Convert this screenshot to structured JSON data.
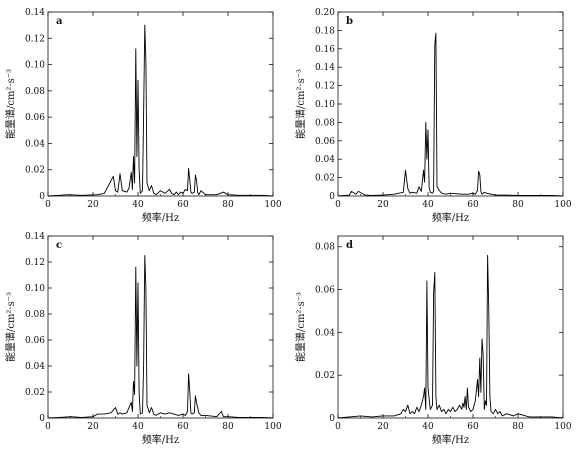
{
  "chart_data": [
    {
      "type": "line",
      "panel_label": "a",
      "xlabel": "频率/Hz",
      "ylabel": "能量谱/cm²·s⁻³",
      "xlim": [
        0,
        100
      ],
      "ylim": [
        0,
        0.14
      ],
      "xticks": [
        "0",
        "20",
        "40",
        "60",
        "80",
        "100"
      ],
      "yticks": [
        "0",
        "0.02",
        "0.04",
        "0.06",
        "0.08",
        "0.10",
        "0.12",
        "0.14"
      ],
      "series": [
        {
          "x": [
            0,
            5,
            9,
            15,
            22,
            25,
            29,
            30,
            31,
            32,
            33,
            35,
            36,
            37,
            37.5,
            38,
            38.5,
            39,
            39.5,
            40,
            40.5,
            41,
            42,
            42.5,
            43,
            43.5,
            44,
            45,
            46,
            47,
            48,
            50,
            52,
            54,
            55,
            56,
            57,
            58,
            59,
            60,
            61,
            62,
            62.5,
            63,
            63.5,
            64,
            65,
            65.5,
            66,
            66.5,
            67,
            68,
            70,
            75,
            78,
            80,
            85,
            90,
            95,
            100
          ],
          "y": [
            0,
            0.0005,
            0.001,
            0.0005,
            0.001,
            0.002,
            0.015,
            0.004,
            0.003,
            0.017,
            0.004,
            0.003,
            0.006,
            0.018,
            0.005,
            0.03,
            0.01,
            0.112,
            0.03,
            0.088,
            0.02,
            0.002,
            0.004,
            0.062,
            0.13,
            0.102,
            0.01,
            0.004,
            0.008,
            0.002,
            0.001,
            0.004,
            0.002,
            0.005,
            0.002,
            0.001,
            0.003,
            0.001,
            0.003,
            0.002,
            0.005,
            0.004,
            0.021,
            0.012,
            0.003,
            0.002,
            0.003,
            0.016,
            0.012,
            0.003,
            0.001,
            0.004,
            0.001,
            0.001,
            0.003,
            0.001,
            0.0005,
            0.0005,
            0.0005,
            0
          ]
        }
      ]
    },
    {
      "type": "line",
      "panel_label": "b",
      "xlabel": "频率/Hz",
      "ylabel": "能量谱/cm²·s⁻³",
      "xlim": [
        0,
        100
      ],
      "ylim": [
        0,
        0.2
      ],
      "xticks": [
        "0",
        "20",
        "40",
        "60",
        "80",
        "100"
      ],
      "yticks": [
        "0",
        "0.02",
        "0.04",
        "0.06",
        "0.08",
        "0.10",
        "0.12",
        "0.14",
        "0.16",
        "0.18",
        "0.20"
      ],
      "series": [
        {
          "x": [
            0,
            3,
            5,
            6,
            8,
            9,
            12,
            15,
            20,
            25,
            29,
            30,
            31,
            32,
            33,
            35,
            36,
            37,
            38,
            38.5,
            39,
            39.5,
            40,
            40.5,
            41,
            42,
            42.5,
            43,
            43.5,
            44,
            45,
            46,
            48,
            50,
            55,
            58,
            60,
            61,
            62,
            62.5,
            63,
            63.5,
            64,
            65,
            66,
            68,
            70,
            75,
            80,
            85,
            90,
            95,
            100
          ],
          "y": [
            0,
            0.0005,
            0.001,
            0.005,
            0.002,
            0.005,
            0.001,
            0.0005,
            0.001,
            0.002,
            0.004,
            0.028,
            0.008,
            0.003,
            0.004,
            0.003,
            0.01,
            0.005,
            0.028,
            0.015,
            0.08,
            0.04,
            0.072,
            0.01,
            0.004,
            0.003,
            0.005,
            0.165,
            0.177,
            0.01,
            0.006,
            0.003,
            0.002,
            0.003,
            0.002,
            0.002,
            0.003,
            0.002,
            0.006,
            0.027,
            0.023,
            0.005,
            0.002,
            0.004,
            0.003,
            0.002,
            0.001,
            0.001,
            0.0005,
            0.0005,
            0.0005,
            0.0005,
            0
          ]
        }
      ]
    },
    {
      "type": "line",
      "panel_label": "c",
      "xlabel": "频率/Hz",
      "ylabel": "能量谱/cm²·s⁻³",
      "xlim": [
        0,
        100
      ],
      "ylim": [
        0,
        0.14
      ],
      "xticks": [
        "0",
        "20",
        "40",
        "60",
        "80",
        "100"
      ],
      "yticks": [
        "0",
        "0.02",
        "0.04",
        "0.06",
        "0.08",
        "0.10",
        "0.12",
        "0.14"
      ],
      "series": [
        {
          "x": [
            0,
            5,
            10,
            15,
            20,
            22,
            25,
            28,
            29,
            30,
            31,
            32,
            33,
            35,
            36,
            37,
            37.5,
            38,
            38.5,
            39,
            39.5,
            40,
            40.5,
            41,
            42,
            42.5,
            43,
            43.5,
            44,
            45,
            46,
            47,
            48,
            50,
            52,
            54,
            56,
            58,
            60,
            61,
            62,
            62.5,
            63,
            63.5,
            64,
            65,
            65.5,
            66,
            67,
            68,
            70,
            75,
            77,
            78,
            80,
            85,
            90,
            95,
            100
          ],
          "y": [
            0,
            0.0005,
            0.001,
            0.0005,
            0.001,
            0.003,
            0.003,
            0.004,
            0.006,
            0.008,
            0.003,
            0.004,
            0.003,
            0.004,
            0.008,
            0.012,
            0.005,
            0.028,
            0.018,
            0.116,
            0.04,
            0.104,
            0.02,
            0.003,
            0.004,
            0.04,
            0.125,
            0.1,
            0.01,
            0.004,
            0.008,
            0.003,
            0.002,
            0.004,
            0.003,
            0.004,
            0.003,
            0.002,
            0.003,
            0.002,
            0.005,
            0.034,
            0.02,
            0.004,
            0.003,
            0.004,
            0.017,
            0.012,
            0.004,
            0.002,
            0.002,
            0.001,
            0.005,
            0.001,
            0.001,
            0.0005,
            0.0005,
            0.0005,
            0
          ]
        }
      ]
    },
    {
      "type": "line",
      "panel_label": "d",
      "xlabel": "频率/Hz",
      "ylabel": "能量谱/cm²·s⁻³",
      "xlim": [
        0,
        100
      ],
      "ylim": [
        0,
        0.085
      ],
      "xticks": [
        "0",
        "20",
        "40",
        "60",
        "80",
        "100"
      ],
      "yticks": [
        "0",
        "0.02",
        "0.04",
        "0.06",
        "0.08"
      ],
      "series": [
        {
          "x": [
            0,
            5,
            10,
            15,
            20,
            25,
            28,
            29,
            30,
            31,
            32,
            33,
            34,
            35,
            36,
            37,
            38,
            38.5,
            39,
            39.5,
            40,
            41,
            42,
            42.5,
            43,
            43.5,
            44,
            45,
            46,
            47,
            48,
            49,
            50,
            51,
            52,
            53,
            54,
            55,
            55.5,
            56,
            56.5,
            57,
            57.5,
            58,
            59,
            60,
            61,
            62,
            62.5,
            63,
            63.5,
            64,
            64.5,
            65,
            65.5,
            66,
            66.5,
            67,
            67.5,
            68,
            69,
            70,
            71,
            72,
            73,
            75,
            78,
            80,
            85,
            90,
            95,
            100
          ],
          "y": [
            0,
            0.0005,
            0.001,
            0.0005,
            0.001,
            0.001,
            0.002,
            0.004,
            0.003,
            0.006,
            0.002,
            0.003,
            0.002,
            0.005,
            0.003,
            0.006,
            0.01,
            0.014,
            0.004,
            0.064,
            0.014,
            0.004,
            0.006,
            0.058,
            0.068,
            0.01,
            0.004,
            0.006,
            0.003,
            0.004,
            0.002,
            0.004,
            0.003,
            0.005,
            0.003,
            0.004,
            0.006,
            0.004,
            0.007,
            0.005,
            0.01,
            0.004,
            0.014,
            0.005,
            0.003,
            0.004,
            0.008,
            0.018,
            0.01,
            0.028,
            0.012,
            0.037,
            0.03,
            0.004,
            0.008,
            0.006,
            0.076,
            0.05,
            0.01,
            0.003,
            0.002,
            0.004,
            0.002,
            0.003,
            0.001,
            0.002,
            0.001,
            0.002,
            0.0005,
            0.0005,
            0.0005,
            0
          ]
        }
      ]
    }
  ]
}
